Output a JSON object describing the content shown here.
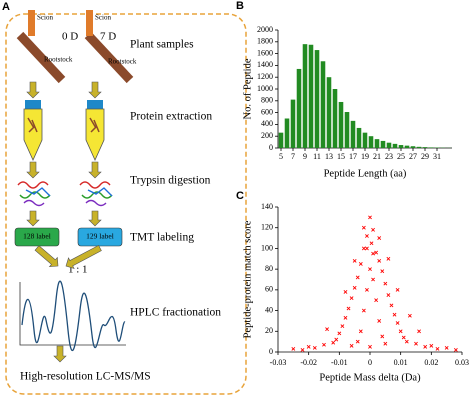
{
  "diagram": {
    "panel_label": "A",
    "samples": [
      {
        "scion": "Scion",
        "day": "0 D",
        "rootstock": "Rootstock"
      },
      {
        "scion": "Scion",
        "day": "7 D",
        "rootstock": "Rootstock"
      }
    ],
    "steps": [
      "Plant samples",
      "Protein extraction",
      "Trypsin digestion",
      "TMT labeling",
      "HPLC fractionation"
    ],
    "labels": [
      "128 label",
      "129 label"
    ],
    "ratio": "1 : 1",
    "final": "High-resolution LC-MS/MS"
  },
  "chart_data": [
    {
      "type": "bar",
      "panel_label": "B",
      "x_label": "Peptide Length (aa)",
      "y_label": "No. of Peptide",
      "color": "#228b22",
      "categories": [
        5,
        null,
        7,
        null,
        9,
        null,
        11,
        null,
        13,
        null,
        15,
        null,
        17,
        null,
        19,
        null,
        21,
        null,
        23,
        null,
        25,
        null,
        27,
        null,
        29,
        null,
        31,
        null,
        null
      ],
      "values": [
        260,
        500,
        820,
        1340,
        1760,
        1750,
        1660,
        1470,
        1200,
        1000,
        780,
        610,
        460,
        340,
        260,
        200,
        150,
        120,
        90,
        70,
        50,
        40,
        30,
        20,
        15,
        10,
        8,
        5,
        3
      ],
      "ylim": [
        0,
        2000
      ],
      "yticks": [
        0,
        200,
        400,
        600,
        800,
        1000,
        1200,
        1400,
        1600,
        1800,
        2000
      ]
    },
    {
      "type": "scatter",
      "panel_label": "C",
      "x_label": "Peptide Mass delta (Da)",
      "y_label": "Peptide-protein match score",
      "color": "#ff0000",
      "x": [
        0,
        0.001,
        -0.001,
        0.0005,
        -0.002,
        0.002,
        0.003,
        -0.003,
        0.004,
        -0.004,
        0.005,
        -0.005,
        0.006,
        -0.006,
        0.007,
        -0.007,
        0.008,
        -0.008,
        0.009,
        -0.009,
        0.01,
        -0.01,
        0.011,
        -0.011,
        0.012,
        -0.012,
        0,
        0.001,
        -0.001,
        0.002,
        -0.002,
        0.003,
        -0.003,
        0.004,
        -0.004,
        0,
        0.005,
        -0.006,
        0.015,
        -0.015,
        0.018,
        -0.018,
        0.02,
        -0.02,
        0.025,
        -0.025,
        0.013,
        0.016,
        -0.014,
        0.006,
        -0.005,
        0.003,
        -0.002,
        0.001,
        -0.001,
        0.022,
        -0.022,
        0.028,
        0.009,
        -0.008
      ],
      "y": [
        130,
        118,
        112,
        105,
        100,
        96,
        88,
        85,
        78,
        72,
        66,
        62,
        55,
        52,
        45,
        42,
        36,
        33,
        28,
        25,
        20,
        18,
        14,
        12,
        10,
        9,
        80,
        70,
        60,
        50,
        40,
        30,
        20,
        15,
        10,
        5,
        8,
        6,
        8,
        7,
        5,
        4,
        6,
        5,
        4,
        3,
        35,
        20,
        22,
        90,
        88,
        110,
        120,
        95,
        100,
        3,
        2,
        2,
        60,
        58
      ],
      "xlim": [
        -0.03,
        0.03
      ],
      "xticks": [
        -0.03,
        -0.02,
        -0.01,
        0,
        0.01,
        0.02,
        0.03
      ],
      "ylim": [
        0,
        140
      ],
      "yticks": [
        0,
        20,
        40,
        60,
        80,
        100,
        120,
        140
      ]
    }
  ]
}
